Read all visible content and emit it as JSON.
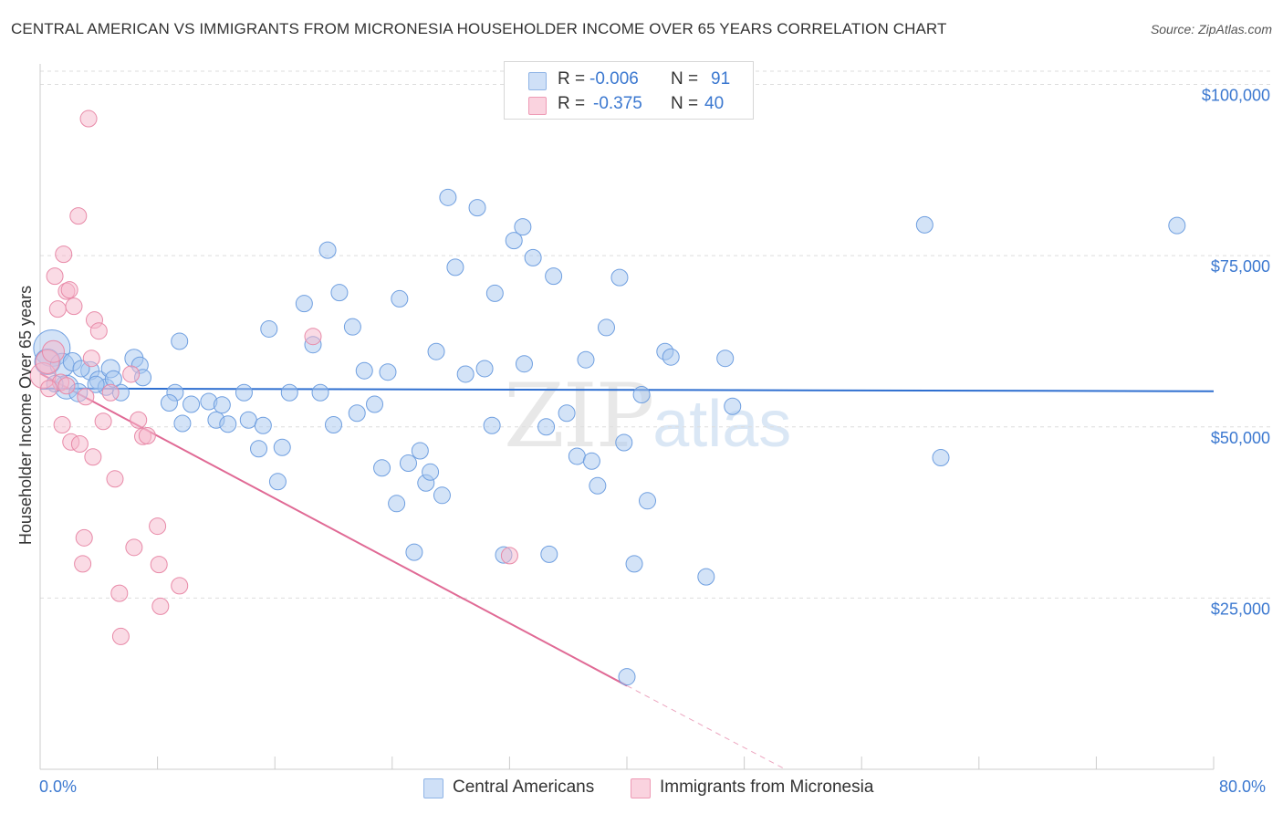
{
  "title": "CENTRAL AMERICAN VS IMMIGRANTS FROM MICRONESIA HOUSEHOLDER INCOME OVER 65 YEARS CORRELATION CHART",
  "source": "Source: ZipAtlas.com",
  "watermark": {
    "main": "ZIP",
    "sub": "atlas"
  },
  "stats": [
    {
      "r_label": "R =",
      "r_value": "-0.006",
      "n_label": "N =",
      "n_value": "91",
      "color": "#a8c8f0"
    },
    {
      "r_label": "R =",
      "r_value": "-0.375",
      "n_label": "N =",
      "n_value": "40",
      "color": "#f6b8cc"
    }
  ],
  "legend": [
    {
      "label": "Central Americans",
      "color": "#a8c8f0"
    },
    {
      "label": "Immigrants from Micronesia",
      "color": "#f6b8cc"
    }
  ],
  "x_axis": {
    "min_label": "0.0%",
    "max_label": "80.0%"
  },
  "chart_data": {
    "type": "scatter",
    "title": "CENTRAL AMERICAN VS IMMIGRANTS FROM MICRONESIA HOUSEHOLDER INCOME OVER 65 YEARS CORRELATION CHART",
    "xlabel": "",
    "ylabel": "Householder Income Over 65 years",
    "xlim": [
      0,
      80
    ],
    "ylim": [
      0,
      103000
    ],
    "yticks": [
      {
        "value": 25000,
        "label": "$25,000"
      },
      {
        "value": 50000,
        "label": "$50,000"
      },
      {
        "value": 75000,
        "label": "$75,000"
      },
      {
        "value": 100000,
        "label": "$100,000"
      }
    ],
    "series": [
      {
        "name": "Central Americans",
        "color": "#a8c8f0",
        "stroke": "#6f9fe0",
        "trend": {
          "x1": 0,
          "y1": 55600,
          "x2": 80,
          "y2": 55200,
          "color": "#2f6fd0"
        },
        "points": [
          [
            0.8,
            61500,
            20
          ],
          [
            0.5,
            59500,
            14
          ],
          [
            1.5,
            59000,
            13
          ],
          [
            1.8,
            55800,
            13
          ],
          [
            2.2,
            59500,
            10
          ],
          [
            3.4,
            58200,
            10
          ],
          [
            2.6,
            55000,
            10
          ],
          [
            4.0,
            56800,
            10
          ],
          [
            4.5,
            55800,
            9
          ],
          [
            4.8,
            58500,
            10
          ],
          [
            5.5,
            55000,
            9
          ],
          [
            6.4,
            60000,
            10
          ],
          [
            6.8,
            59000,
            9
          ],
          [
            7.0,
            57200,
            9
          ],
          [
            5.0,
            57000,
            9
          ],
          [
            9.5,
            62500,
            9
          ],
          [
            9.2,
            55000,
            9
          ],
          [
            10.3,
            53300,
            9
          ],
          [
            8.8,
            53500,
            9
          ],
          [
            9.7,
            50500,
            9
          ],
          [
            11.5,
            53700,
            9
          ],
          [
            12.0,
            51000,
            9
          ],
          [
            12.4,
            53200,
            9
          ],
          [
            12.8,
            50400,
            9
          ],
          [
            13.9,
            55000,
            9
          ],
          [
            14.2,
            51000,
            9
          ],
          [
            15.2,
            50200,
            9
          ],
          [
            14.9,
            46800,
            9
          ],
          [
            15.6,
            64300,
            9
          ],
          [
            16.5,
            47000,
            9
          ],
          [
            16.2,
            42000,
            9
          ],
          [
            17.0,
            55000,
            9
          ],
          [
            18.0,
            68000,
            9
          ],
          [
            18.6,
            62000,
            9
          ],
          [
            19.1,
            55000,
            9
          ],
          [
            19.6,
            75800,
            9
          ],
          [
            20.0,
            50300,
            9
          ],
          [
            20.4,
            69600,
            9
          ],
          [
            21.3,
            64600,
            9
          ],
          [
            21.6,
            52000,
            9
          ],
          [
            22.1,
            58200,
            9
          ],
          [
            22.8,
            53300,
            9
          ],
          [
            23.3,
            44000,
            9
          ],
          [
            23.7,
            58000,
            9
          ],
          [
            24.3,
            38800,
            9
          ],
          [
            24.5,
            68700,
            9
          ],
          [
            25.1,
            44700,
            9
          ],
          [
            25.5,
            31700,
            9
          ],
          [
            25.9,
            46500,
            9
          ],
          [
            26.3,
            41800,
            9
          ],
          [
            26.6,
            43400,
            9
          ],
          [
            27.0,
            61000,
            9
          ],
          [
            27.4,
            40000,
            9
          ],
          [
            28.3,
            73300,
            9
          ],
          [
            27.8,
            83500,
            9
          ],
          [
            29.0,
            57700,
            9
          ],
          [
            29.8,
            82000,
            9
          ],
          [
            30.3,
            58500,
            9
          ],
          [
            30.8,
            50200,
            9
          ],
          [
            31.0,
            69500,
            9
          ],
          [
            31.6,
            31300,
            9
          ],
          [
            32.3,
            77200,
            9
          ],
          [
            32.9,
            79200,
            9
          ],
          [
            33.0,
            59200,
            9
          ],
          [
            33.6,
            74700,
            9
          ],
          [
            34.5,
            50000,
            9
          ],
          [
            34.7,
            31400,
            9
          ],
          [
            35.0,
            72000,
            9
          ],
          [
            35.9,
            52000,
            9
          ],
          [
            36.6,
            45700,
            9
          ],
          [
            37.2,
            59800,
            9
          ],
          [
            37.6,
            45000,
            9
          ],
          [
            38.0,
            41400,
            9
          ],
          [
            38.6,
            64500,
            9
          ],
          [
            39.5,
            71800,
            9
          ],
          [
            39.8,
            47700,
            9
          ],
          [
            40.5,
            30000,
            9
          ],
          [
            41.0,
            54700,
            9
          ],
          [
            41.4,
            39200,
            9
          ],
          [
            42.6,
            61000,
            9
          ],
          [
            43.0,
            60200,
            9
          ],
          [
            45.4,
            28100,
            9
          ],
          [
            46.7,
            60000,
            9
          ],
          [
            47.2,
            53000,
            9
          ],
          [
            60.3,
            79500,
            9
          ],
          [
            61.4,
            45500,
            9
          ],
          [
            77.5,
            79400,
            9
          ],
          [
            40.0,
            13500,
            9
          ],
          [
            2.8,
            58500,
            9
          ],
          [
            1.0,
            56300,
            9
          ],
          [
            3.8,
            56200,
            9
          ]
        ]
      },
      {
        "name": "Immigrants from Micronesia",
        "color": "#f6b8cc",
        "stroke": "#e88aa8",
        "trend": {
          "x1": 0,
          "y1": 57800,
          "x2": 40,
          "y2": 12200,
          "color": "#e06a95"
        },
        "trend_extension": {
          "x1": 40,
          "y1": 12200,
          "x2": 50.8,
          "y2": 0
        },
        "points": [
          [
            0.2,
            57500,
            14
          ],
          [
            0.5,
            59500,
            13
          ],
          [
            0.9,
            61000,
            12
          ],
          [
            1.0,
            72000,
            9
          ],
          [
            1.2,
            67200,
            9
          ],
          [
            1.4,
            56500,
            9
          ],
          [
            1.5,
            50300,
            9
          ],
          [
            1.6,
            75200,
            9
          ],
          [
            1.8,
            69800,
            9
          ],
          [
            2.0,
            70000,
            9
          ],
          [
            2.1,
            47800,
            9
          ],
          [
            2.3,
            67600,
            9
          ],
          [
            2.6,
            80800,
            9
          ],
          [
            2.7,
            47500,
            9
          ],
          [
            2.9,
            30000,
            9
          ],
          [
            3.0,
            33800,
            9
          ],
          [
            3.3,
            95000,
            9
          ],
          [
            3.5,
            60000,
            9
          ],
          [
            3.6,
            45600,
            9
          ],
          [
            3.7,
            65600,
            9
          ],
          [
            4.0,
            64000,
            9
          ],
          [
            4.3,
            50800,
            9
          ],
          [
            5.1,
            42400,
            9
          ],
          [
            5.4,
            25700,
            9
          ],
          [
            5.5,
            19400,
            9
          ],
          [
            6.4,
            32400,
            9
          ],
          [
            6.7,
            51000,
            9
          ],
          [
            7.0,
            48600,
            9
          ],
          [
            7.3,
            48700,
            9
          ],
          [
            8.0,
            35500,
            9
          ],
          [
            8.1,
            29900,
            9
          ],
          [
            8.2,
            23800,
            9
          ],
          [
            9.5,
            26800,
            9
          ],
          [
            18.6,
            63200,
            9
          ],
          [
            32.0,
            31200,
            9
          ],
          [
            0.6,
            55600,
            9
          ],
          [
            1.8,
            56000,
            9
          ],
          [
            4.8,
            55000,
            9
          ],
          [
            6.2,
            57700,
            9
          ],
          [
            3.1,
            54400,
            9
          ]
        ]
      }
    ]
  }
}
